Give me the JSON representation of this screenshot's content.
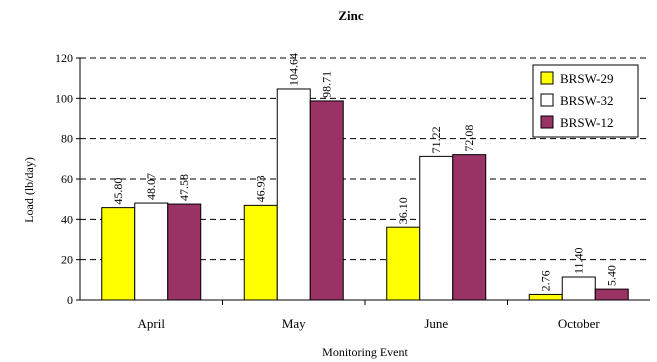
{
  "chart_data": {
    "type": "bar",
    "title": "Zinc",
    "xlabel": "Monitoring Event",
    "ylabel": "Load (lb/day)",
    "categories": [
      "April",
      "May",
      "June",
      "October"
    ],
    "ylim": [
      0,
      120
    ],
    "yticks": [
      "0",
      "20",
      "40",
      "60",
      "80",
      "100",
      "120"
    ],
    "grid": "horizontal dashed",
    "legend_position": "top-right",
    "series": [
      {
        "name": "BRSW-29",
        "color": "#ffff00",
        "values": [
          45.8,
          46.93,
          36.1,
          2.76
        ],
        "labels": [
          "45.80",
          "46.93",
          "36.10",
          "2.76"
        ]
      },
      {
        "name": "BRSW-32",
        "color": "#ffffff",
        "values": [
          48.07,
          104.64,
          71.22,
          11.4
        ],
        "labels": [
          "48.07",
          "104.64",
          "71.22",
          "11.40"
        ]
      },
      {
        "name": "BRSW-12",
        "color": "#993366",
        "values": [
          47.58,
          98.71,
          72.08,
          5.4
        ],
        "labels": [
          "47.58",
          "98.71",
          "72.08",
          "5.40"
        ]
      }
    ]
  }
}
